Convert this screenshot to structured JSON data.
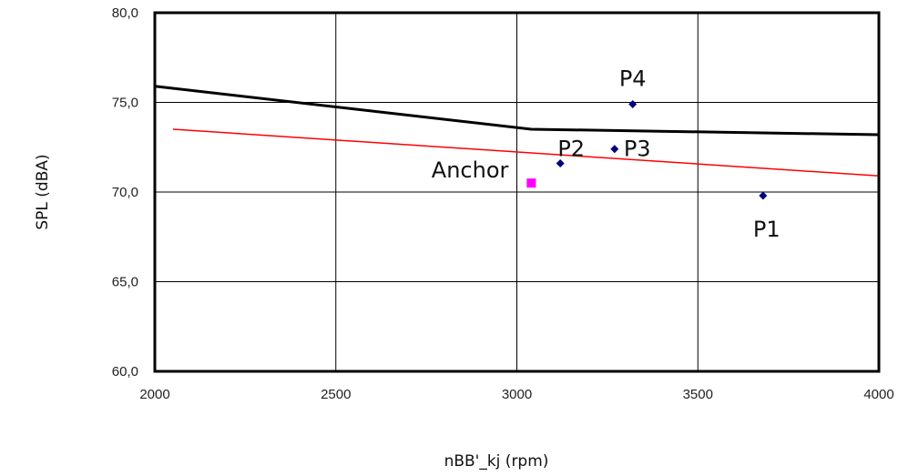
{
  "chart_data": {
    "type": "scatter",
    "xlabel": "nBB'_kj (rpm)",
    "ylabel": "SPL (dBA)",
    "xlim": [
      2000,
      4000
    ],
    "ylim": [
      60,
      80
    ],
    "grid": true,
    "x_ticks": [
      {
        "value": 2000,
        "label": "2000"
      },
      {
        "value": 2500,
        "label": "2500"
      },
      {
        "value": 3000,
        "label": "3000"
      },
      {
        "value": 3500,
        "label": "3500"
      },
      {
        "value": 4000,
        "label": "4000"
      }
    ],
    "y_ticks": [
      {
        "value": 60,
        "label": "60,0"
      },
      {
        "value": 65,
        "label": "65,0"
      },
      {
        "value": 70,
        "label": "70,0"
      },
      {
        "value": 75,
        "label": "75,0"
      },
      {
        "value": 80,
        "label": "80,0"
      }
    ],
    "lines": [
      {
        "color": "#000000",
        "points": [
          [
            2000,
            75.9
          ],
          [
            3040,
            73.5
          ],
          [
            4000,
            73.2
          ]
        ]
      },
      {
        "color": "#ff0000",
        "points": [
          [
            2050,
            73.5
          ],
          [
            4000,
            70.9
          ]
        ]
      }
    ],
    "points": [
      {
        "label": "Anchor",
        "x": 3040,
        "y": 70.5,
        "marker": "square",
        "color": "#ff00ff"
      },
      {
        "label": "P1",
        "x": 3680,
        "y": 69.8,
        "marker": "diamond",
        "color": "#000080"
      },
      {
        "label": "P2",
        "x": 3120,
        "y": 71.6,
        "marker": "diamond",
        "color": "#000080"
      },
      {
        "label": "P3",
        "x": 3270,
        "y": 72.4,
        "marker": "diamond",
        "color": "#000080"
      },
      {
        "label": "P4",
        "x": 3320,
        "y": 74.9,
        "marker": "diamond",
        "color": "#000080"
      }
    ]
  }
}
